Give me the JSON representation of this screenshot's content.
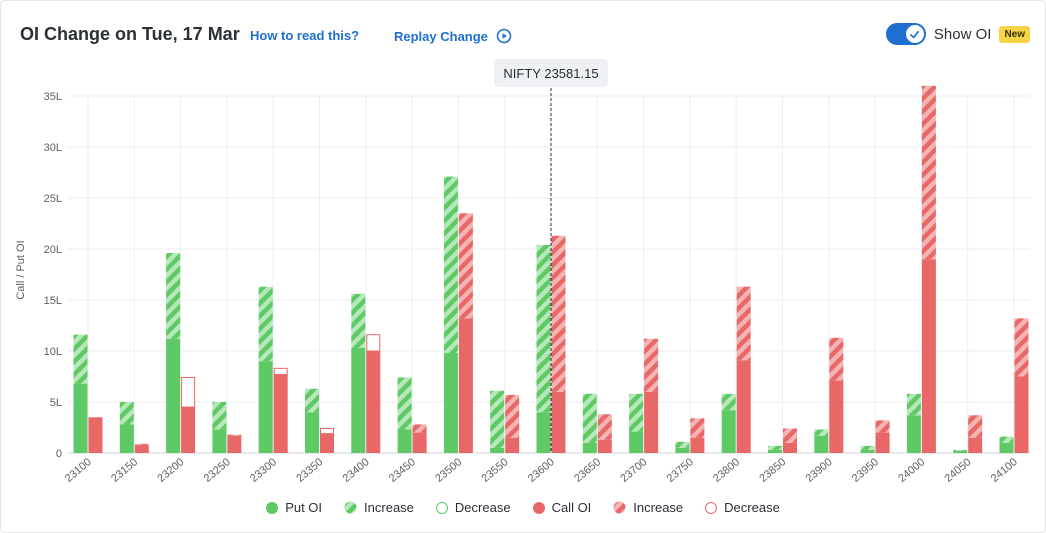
{
  "header": {
    "title": "OI Change on Tue, 17 Mar",
    "how_to_read": "How to read this?",
    "replay": "Replay Change",
    "toggle_label": "Show OI",
    "new_badge": "New"
  },
  "colors": {
    "put": "#5ec965",
    "put_light": "#b6e8b9",
    "call": "#e86868",
    "call_light": "#f4b4b4",
    "accent": "#1f6fd1"
  },
  "chart_data": {
    "type": "bar",
    "ylabel": "Call / Put OI",
    "ylim": [
      0,
      35
    ],
    "yticks": [
      0,
      5,
      10,
      15,
      20,
      25,
      30,
      35
    ],
    "ytick_labels": [
      "0",
      "5L",
      "10L",
      "15L",
      "20L",
      "25L",
      "30L",
      "35L"
    ],
    "spot_label": "NIFTY 23581.15",
    "spot_category": "23600",
    "categories": [
      "23100",
      "23150",
      "23200",
      "23250",
      "23300",
      "23350",
      "23400",
      "23450",
      "23500",
      "23550",
      "23600",
      "23650",
      "23700",
      "23750",
      "23800",
      "23850",
      "23900",
      "23950",
      "24000",
      "24050",
      "24100"
    ],
    "put_oi": [
      6.8,
      2.8,
      11.2,
      2.3,
      9.0,
      4.0,
      10.3,
      2.3,
      9.8,
      0.5,
      4.0,
      1.0,
      2.1,
      0.5,
      4.2,
      0.3,
      1.7,
      0.3,
      3.7,
      0.2,
      1.0
    ],
    "put_increase": [
      4.8,
      2.2,
      8.4,
      2.7,
      7.3,
      2.3,
      5.3,
      5.1,
      17.3,
      5.6,
      16.4,
      4.8,
      3.7,
      0.6,
      1.6,
      0.4,
      0.6,
      0.4,
      2.1,
      0.1,
      0.6
    ],
    "put_decrease": [
      0,
      0,
      0,
      0,
      0,
      0,
      0,
      0,
      0,
      0,
      0,
      0,
      0,
      0,
      0,
      0,
      0,
      0,
      0,
      0,
      0
    ],
    "call_oi": [
      3.5,
      0.8,
      4.5,
      1.7,
      7.7,
      1.9,
      10.0,
      2.0,
      13.2,
      1.5,
      6.0,
      1.3,
      6.0,
      1.5,
      9.1,
      1.0,
      7.1,
      2.0,
      19.0,
      1.5,
      7.5
    ],
    "call_increase": [
      0,
      0.1,
      0,
      0.1,
      0,
      0,
      0,
      0.8,
      10.3,
      4.2,
      15.3,
      2.5,
      5.2,
      1.9,
      7.2,
      1.4,
      4.2,
      1.2,
      17.0,
      2.2,
      5.7
    ],
    "call_decrease": [
      0,
      0,
      2.9,
      0,
      0.6,
      0.5,
      1.6,
      0,
      0,
      0,
      0,
      0,
      0,
      0,
      0,
      0,
      0,
      0,
      0,
      0,
      0
    ],
    "legend": [
      "Put OI",
      "Increase",
      "Decrease",
      "Call OI",
      "Increase",
      "Decrease"
    ],
    "grid": true
  }
}
